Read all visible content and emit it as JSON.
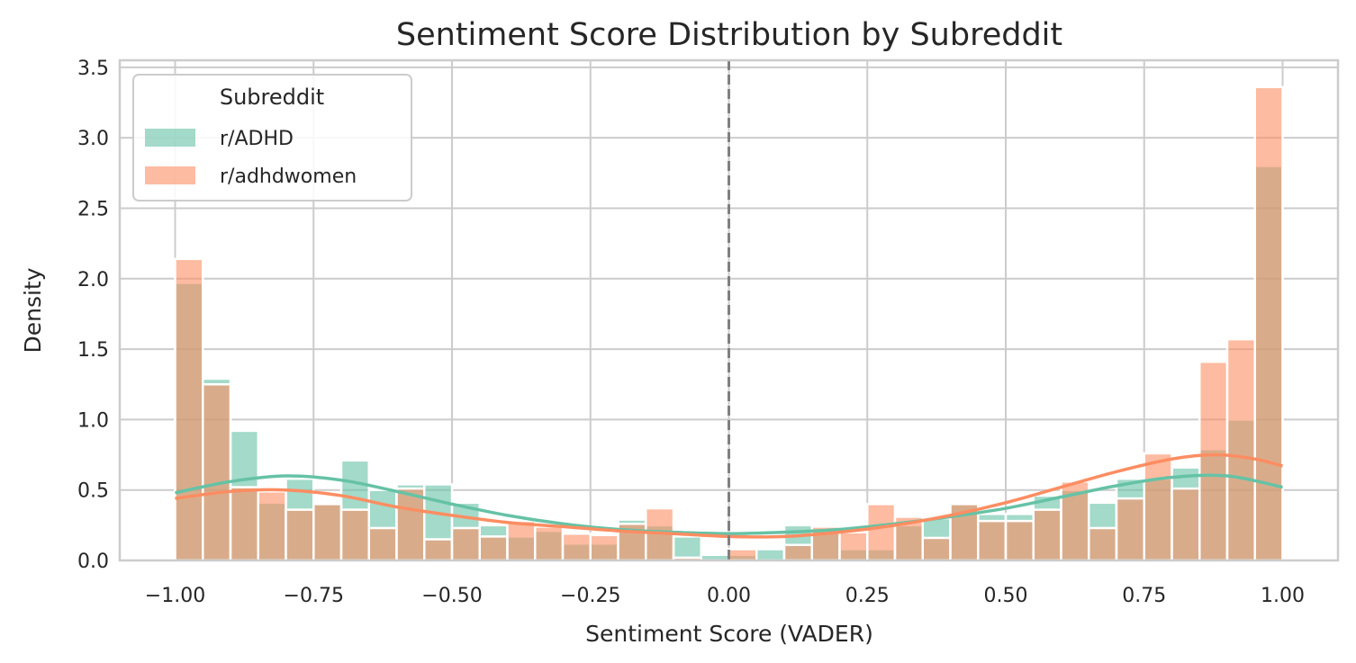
{
  "chart_data": {
    "type": "histogram",
    "title": "Sentiment Score Distribution by Subreddit",
    "xlabel": "Sentiment Score (VADER)",
    "ylabel": "Density",
    "xlim": [
      -1.1,
      1.1
    ],
    "ylim": [
      0,
      3.55
    ],
    "xticks": [
      -1.0,
      -0.75,
      -0.5,
      -0.25,
      0.0,
      0.25,
      0.5,
      0.75,
      1.0
    ],
    "xtick_labels": [
      "−1.00",
      "−0.75",
      "−0.50",
      "−0.25",
      "0.00",
      "0.25",
      "0.50",
      "0.75",
      "1.00"
    ],
    "yticks": [
      0.0,
      0.5,
      1.0,
      1.5,
      2.0,
      2.5,
      3.0,
      3.5
    ],
    "ytick_labels": [
      "0.0",
      "0.5",
      "1.0",
      "1.5",
      "2.0",
      "2.5",
      "3.0",
      "3.5"
    ],
    "grid": true,
    "legend": {
      "title": "Subreddit",
      "position": "top-left"
    },
    "reference_line": {
      "x": 0.0,
      "style": "dashed",
      "color": "#808080"
    },
    "bin_edges": [
      -1.0,
      -0.95,
      -0.9,
      -0.85,
      -0.8,
      -0.75,
      -0.7,
      -0.65,
      -0.6,
      -0.55,
      -0.5,
      -0.45,
      -0.4,
      -0.35,
      -0.3,
      -0.25,
      -0.2,
      -0.15,
      -0.1,
      -0.05,
      0.0,
      0.05,
      0.1,
      0.15,
      0.2,
      0.25,
      0.3,
      0.35,
      0.4,
      0.45,
      0.5,
      0.55,
      0.6,
      0.65,
      0.7,
      0.75,
      0.8,
      0.85,
      0.9,
      0.95,
      1.0
    ],
    "series": [
      {
        "name": "r/ADHD",
        "color": "#66c2a5",
        "density": [
          1.97,
          1.29,
          0.92,
          0.41,
          0.58,
          0.41,
          0.71,
          0.5,
          0.54,
          0.54,
          0.41,
          0.25,
          0.17,
          0.21,
          0.12,
          0.12,
          0.29,
          0.25,
          0.17,
          0.04,
          0.04,
          0.08,
          0.25,
          0.21,
          0.08,
          0.08,
          0.25,
          0.3,
          0.41,
          0.33,
          0.33,
          0.46,
          0.5,
          0.41,
          0.58,
          0.58,
          0.66,
          0.79,
          1.0,
          2.8
        ],
        "kde": [
          [
            -1.0,
            0.48
          ],
          [
            -0.9,
            0.56
          ],
          [
            -0.8,
            0.6
          ],
          [
            -0.7,
            0.57
          ],
          [
            -0.6,
            0.49
          ],
          [
            -0.5,
            0.4
          ],
          [
            -0.4,
            0.32
          ],
          [
            -0.3,
            0.26
          ],
          [
            -0.2,
            0.22
          ],
          [
            -0.1,
            0.2
          ],
          [
            0.0,
            0.19
          ],
          [
            0.1,
            0.2
          ],
          [
            0.2,
            0.22
          ],
          [
            0.3,
            0.26
          ],
          [
            0.4,
            0.31
          ],
          [
            0.5,
            0.37
          ],
          [
            0.6,
            0.45
          ],
          [
            0.7,
            0.53
          ],
          [
            0.8,
            0.59
          ],
          [
            0.9,
            0.6
          ],
          [
            1.0,
            0.52
          ]
        ]
      },
      {
        "name": "r/adhdwomen",
        "color": "#fc8d62",
        "density": [
          2.14,
          1.25,
          0.52,
          0.49,
          0.36,
          0.4,
          0.36,
          0.23,
          0.51,
          0.15,
          0.23,
          0.17,
          0.28,
          0.24,
          0.19,
          0.18,
          0.26,
          0.37,
          0.02,
          0.0,
          0.08,
          0.0,
          0.11,
          0.24,
          0.2,
          0.4,
          0.31,
          0.16,
          0.4,
          0.28,
          0.28,
          0.36,
          0.56,
          0.23,
          0.44,
          0.76,
          0.51,
          1.41,
          1.57,
          3.36
        ],
        "kde": [
          [
            -1.0,
            0.44
          ],
          [
            -0.9,
            0.49
          ],
          [
            -0.8,
            0.5
          ],
          [
            -0.7,
            0.46
          ],
          [
            -0.6,
            0.38
          ],
          [
            -0.5,
            0.32
          ],
          [
            -0.4,
            0.27
          ],
          [
            -0.3,
            0.24
          ],
          [
            -0.2,
            0.21
          ],
          [
            -0.1,
            0.19
          ],
          [
            0.0,
            0.17
          ],
          [
            0.1,
            0.17
          ],
          [
            0.2,
            0.2
          ],
          [
            0.3,
            0.25
          ],
          [
            0.4,
            0.32
          ],
          [
            0.5,
            0.41
          ],
          [
            0.6,
            0.52
          ],
          [
            0.7,
            0.63
          ],
          [
            0.8,
            0.72
          ],
          [
            0.88,
            0.75
          ],
          [
            0.95,
            0.72
          ],
          [
            1.0,
            0.67
          ]
        ]
      }
    ]
  }
}
